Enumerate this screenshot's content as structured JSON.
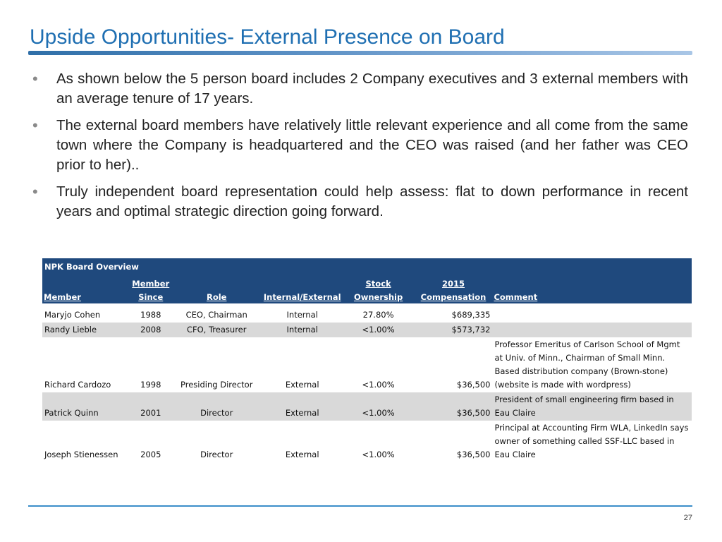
{
  "slide": {
    "title": "Upside Opportunities- External Presence on Board",
    "page_number": "27",
    "bullet_glyph": "•",
    "bullets": [
      "As shown below the 5 person board includes 2 Company executives and 3 external members with an average tenure of 17 years.",
      "The external board members have relatively little relevant experience and all come from the same town where the Company is headquartered and the CEO was raised (and her father was CEO prior to her)..",
      "Truly independent board representation could help assess: flat to down performance in recent years and optimal strategic direction going forward."
    ]
  },
  "table": {
    "title": "NPK Board Overview",
    "headers": {
      "member": [
        "",
        "Member"
      ],
      "since": [
        "Member",
        "Since"
      ],
      "role": [
        "",
        "Role"
      ],
      "internal_external": [
        "",
        "Internal/External"
      ],
      "stock": [
        "Stock",
        "Ownership"
      ],
      "comp": [
        "2015",
        "Compensation"
      ],
      "comment": [
        "",
        "Comment"
      ]
    },
    "rows": [
      {
        "member": "Maryjo Cohen",
        "since": "1988",
        "role": "CEO, Chairman",
        "internal_external": "Internal",
        "stock": "27.80%",
        "comp": "$689,335",
        "comment": ""
      },
      {
        "member": "Randy Lieble",
        "since": "2008",
        "role": "CFO, Treasurer",
        "internal_external": "Internal",
        "stock": "<1.00%",
        "comp": "$573,732",
        "comment": ""
      },
      {
        "member": "Richard Cardozo",
        "since": "1998",
        "role": "Presiding Director",
        "internal_external": "External",
        "stock": "<1.00%",
        "comp": "$36,500",
        "comment": "Professor Emeritus of Carlson School of Mgmt at Univ. of Minn., Chairman of Small Minn. Based distribution company (Brown-stone) (website is made with wordpress)"
      },
      {
        "member": "Patrick Quinn",
        "since": "2001",
        "role": "Director",
        "internal_external": "External",
        "stock": "<1.00%",
        "comp": "$36,500",
        "comment": "President of small engineering firm based in Eau Claire"
      },
      {
        "member": "Joseph Stienessen",
        "since": "2005",
        "role": "Director",
        "internal_external": "External",
        "stock": "<1.00%",
        "comp": "$36,500",
        "comment": "Principal at Accounting Firm WLA, LinkedIn says owner of something called SSF-LLC based in Eau Claire"
      }
    ]
  },
  "colors": {
    "title": "#1f6fb2",
    "table_header_bg": "#1f497d",
    "shaded_row": "#d9d9d9",
    "footer_rule": "#3b8ec9"
  }
}
